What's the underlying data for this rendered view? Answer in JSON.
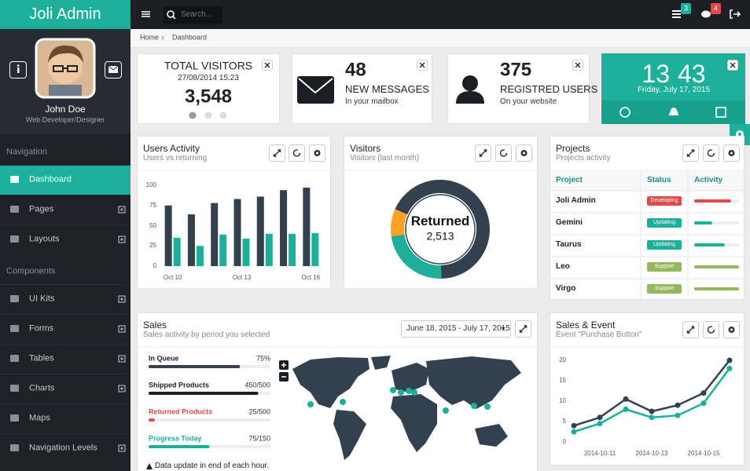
{
  "sidebar": {
    "logo": "Joli Admin",
    "user_name": "John Doe",
    "user_role": "Web Developer/Designer",
    "sections": [
      {
        "title": "Navigation",
        "items": [
          "Dashboard",
          "Pages",
          "Layouts"
        ]
      },
      {
        "title": "Components",
        "items": [
          "UI Kits",
          "Forms",
          "Tables",
          "Charts",
          "Maps",
          "Navigation Levels"
        ]
      }
    ]
  },
  "topbar": {
    "search_placeholder": "Search...",
    "badges": [
      3,
      4
    ]
  },
  "breadcrumb": [
    "Home",
    "Dashboard"
  ],
  "widgets": {
    "visitors": {
      "title": "TOTAL VISITORS",
      "date": "27/08/2014 15:23",
      "value": "3,548"
    },
    "messages": {
      "value": "48",
      "title": "NEW MESSAGES",
      "subtitle": "In your mailbox"
    },
    "users": {
      "value": "375",
      "title": "REGISTRED USERS",
      "subtitle": "On your website"
    },
    "clock": {
      "hours": "13",
      "minutes": "43",
      "date": "Friday, July 17, 2015"
    }
  },
  "users_activity": {
    "title": "Users Activity",
    "subtitle": "Users vs returning",
    "chart_data": {
      "type": "bar",
      "categories": [
        "Oct 10",
        null,
        null,
        "Oct 13",
        null,
        null,
        "Oct 16"
      ],
      "series": [
        {
          "color": "#33414e",
          "values": [
            75,
            64,
            78,
            83,
            86,
            94,
            97
          ]
        },
        {
          "color": "#1caf9a",
          "values": [
            35,
            25,
            39,
            34,
            40,
            40,
            41
          ]
        }
      ],
      "ylim": [
        0,
        100
      ],
      "yticks": [
        0,
        25,
        50,
        75,
        100
      ]
    }
  },
  "visitors": {
    "title": "Visitors",
    "subtitle": "Visitors (last month)",
    "chart_data": {
      "type": "donut",
      "values": [
        68,
        23,
        9
      ],
      "colors": [
        "#33414e",
        "#1caf9a",
        "#fea223"
      ],
      "center_label": "Returned",
      "center_value": "2,513"
    }
  },
  "projects": {
    "title": "Projects",
    "subtitle": "Projects activity",
    "columns": [
      "Project",
      "Status",
      "Activity"
    ],
    "rows": [
      {
        "project": "Joli Admin",
        "status": "Developing",
        "status_color": "#e04b4a",
        "activity": 82,
        "activity_color": "#e04b4a"
      },
      {
        "project": "Gemini",
        "status": "Updating",
        "status_color": "#1caf9a",
        "activity": 40,
        "activity_color": "#1caf9a"
      },
      {
        "project": "Taurus",
        "status": "Updating",
        "status_color": "#1caf9a",
        "activity": 68,
        "activity_color": "#1caf9a"
      },
      {
        "project": "Leo",
        "status": "Support",
        "status_color": "#95b75d",
        "activity": 100,
        "activity_color": "#95b75d"
      },
      {
        "project": "Virgo",
        "status": "Support",
        "status_color": "#95b75d",
        "activity": 100,
        "activity_color": "#95b75d"
      }
    ]
  },
  "sales": {
    "title": "Sales",
    "subtitle": "Sales activity by period you selected",
    "date_range": "June 18, 2015 - July 17, 2015",
    "items": [
      {
        "label": "In Queue",
        "value_text": "75%",
        "progress": 75,
        "color": "#33414e"
      },
      {
        "label": "Shipped Products",
        "value_text": "450/500",
        "progress": 90,
        "color": "#1b1e24"
      },
      {
        "label": "Returned Products",
        "value_text": "25/500",
        "progress": 5,
        "color": "#e04b4a"
      },
      {
        "label": "Progress Today",
        "value_text": "75/150",
        "progress": 50,
        "color": "#1caf9a"
      }
    ],
    "note": "Data update in end of each hour."
  },
  "sales_event": {
    "title": "Sales & Event",
    "subtitle": "Event \"Purchase Button\"",
    "chart_data": {
      "type": "line",
      "categories": [
        null,
        "2014-10-11",
        null,
        "2014-10-13",
        null,
        "2014-10-15",
        null
      ],
      "series": [
        {
          "color": "#33414e",
          "values": [
            4,
            6,
            10.5,
            7.5,
            9,
            12,
            20
          ]
        },
        {
          "color": "#1caf9a",
          "values": [
            2.5,
            4.5,
            8,
            6,
            6.5,
            9.5,
            18
          ]
        }
      ],
      "ylim": [
        0,
        20
      ],
      "yticks": [
        0,
        5,
        10,
        15,
        20
      ]
    }
  }
}
